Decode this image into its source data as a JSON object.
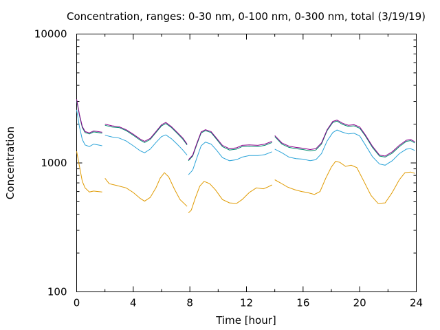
{
  "chart_data": {
    "type": "line",
    "title": "Concentration, ranges: 0-30 nm, 0-100 nm, 0-300 nm, total (3/19/19)",
    "xlabel": "Time [hour]",
    "ylabel": "Concentration",
    "xlim": [
      0,
      24
    ],
    "ylim": [
      100,
      10000
    ],
    "yscale": "log",
    "x_ticks": [
      "0",
      "4",
      "8",
      "12",
      "16",
      "20",
      "24"
    ],
    "y_ticks": [
      "100",
      "1000",
      "10000"
    ],
    "grid": false,
    "series": [
      {
        "color": "#e09a00",
        "segments": [
          [
            [
              0.0,
              1230
            ],
            [
              0.2,
              940
            ],
            [
              0.4,
              720
            ],
            [
              0.6,
              640
            ],
            [
              0.9,
              595
            ],
            [
              1.2,
              605
            ],
            [
              1.5,
              600
            ],
            [
              1.8,
              595
            ]
          ],
          [
            [
              2.0,
              760
            ],
            [
              2.3,
              690
            ],
            [
              2.8,
              670
            ],
            [
              3.5,
              640
            ],
            [
              4.0,
              590
            ],
            [
              4.5,
              530
            ],
            [
              4.8,
              505
            ],
            [
              5.2,
              540
            ],
            [
              5.6,
              640
            ],
            [
              5.9,
              760
            ],
            [
              6.2,
              840
            ],
            [
              6.5,
              780
            ],
            [
              6.9,
              630
            ],
            [
              7.3,
              520
            ],
            [
              7.8,
              460
            ]
          ],
          [
            [
              7.9,
              410
            ],
            [
              8.1,
              430
            ],
            [
              8.4,
              540
            ],
            [
              8.7,
              660
            ],
            [
              9.0,
              720
            ],
            [
              9.4,
              690
            ],
            [
              9.8,
              620
            ],
            [
              10.3,
              520
            ],
            [
              10.8,
              490
            ],
            [
              11.3,
              485
            ],
            [
              11.7,
              520
            ],
            [
              12.2,
              590
            ],
            [
              12.7,
              640
            ],
            [
              13.2,
              630
            ],
            [
              13.5,
              650
            ],
            [
              13.8,
              675
            ]
          ],
          [
            [
              14.0,
              740
            ],
            [
              14.4,
              700
            ],
            [
              14.9,
              650
            ],
            [
              15.4,
              620
            ],
            [
              15.9,
              600
            ],
            [
              16.3,
              590
            ],
            [
              16.8,
              570
            ],
            [
              17.2,
              600
            ],
            [
              17.6,
              760
            ],
            [
              18.0,
              930
            ],
            [
              18.3,
              1030
            ],
            [
              18.6,
              1010
            ],
            [
              19.0,
              940
            ],
            [
              19.4,
              960
            ],
            [
              19.8,
              920
            ],
            [
              20.3,
              720
            ],
            [
              20.8,
              560
            ],
            [
              21.3,
              485
            ],
            [
              21.8,
              490
            ],
            [
              22.3,
              590
            ],
            [
              22.8,
              740
            ],
            [
              23.2,
              840
            ],
            [
              23.6,
              850
            ],
            [
              23.9,
              830
            ]
          ]
        ]
      },
      {
        "color": "#2aa3d8",
        "segments": [
          [
            [
              0.0,
              2580
            ],
            [
              0.2,
              1900
            ],
            [
              0.4,
              1520
            ],
            [
              0.6,
              1380
            ],
            [
              0.9,
              1340
            ],
            [
              1.2,
              1400
            ],
            [
              1.5,
              1380
            ],
            [
              1.8,
              1360
            ]
          ],
          [
            [
              2.0,
              1640
            ],
            [
              2.5,
              1590
            ],
            [
              3.0,
              1560
            ],
            [
              3.5,
              1480
            ],
            [
              4.0,
              1360
            ],
            [
              4.5,
              1240
            ],
            [
              4.8,
              1200
            ],
            [
              5.2,
              1280
            ],
            [
              5.6,
              1440
            ],
            [
              6.0,
              1600
            ],
            [
              6.3,
              1650
            ],
            [
              6.7,
              1540
            ],
            [
              7.1,
              1400
            ],
            [
              7.5,
              1260
            ],
            [
              7.8,
              1150
            ]
          ],
          [
            [
              7.9,
              810
            ],
            [
              8.2,
              880
            ],
            [
              8.5,
              1100
            ],
            [
              8.8,
              1360
            ],
            [
              9.1,
              1450
            ],
            [
              9.5,
              1400
            ],
            [
              9.9,
              1250
            ],
            [
              10.3,
              1100
            ],
            [
              10.8,
              1040
            ],
            [
              11.3,
              1060
            ],
            [
              11.7,
              1110
            ],
            [
              12.2,
              1140
            ],
            [
              12.8,
              1140
            ],
            [
              13.3,
              1160
            ],
            [
              13.8,
              1220
            ]
          ],
          [
            [
              14.0,
              1280
            ],
            [
              14.5,
              1200
            ],
            [
              15.0,
              1110
            ],
            [
              15.5,
              1080
            ],
            [
              16.0,
              1070
            ],
            [
              16.5,
              1040
            ],
            [
              16.9,
              1060
            ],
            [
              17.3,
              1180
            ],
            [
              17.7,
              1480
            ],
            [
              18.1,
              1720
            ],
            [
              18.4,
              1800
            ],
            [
              18.8,
              1730
            ],
            [
              19.2,
              1680
            ],
            [
              19.6,
              1700
            ],
            [
              20.0,
              1620
            ],
            [
              20.4,
              1380
            ],
            [
              20.9,
              1120
            ],
            [
              21.4,
              980
            ],
            [
              21.8,
              960
            ],
            [
              22.3,
              1040
            ],
            [
              22.8,
              1180
            ],
            [
              23.3,
              1280
            ],
            [
              23.6,
              1290
            ],
            [
              23.9,
              1250
            ]
          ]
        ]
      },
      {
        "color": "#008b6e",
        "segments": [
          [
            [
              0.0,
              3050
            ],
            [
              0.2,
              2320
            ],
            [
              0.4,
              1880
            ],
            [
              0.6,
              1720
            ],
            [
              0.9,
              1680
            ],
            [
              1.2,
              1740
            ],
            [
              1.5,
              1720
            ],
            [
              1.8,
              1700
            ]
          ],
          [
            [
              2.0,
              1960
            ],
            [
              2.5,
              1900
            ],
            [
              3.0,
              1880
            ],
            [
              3.5,
              1780
            ],
            [
              4.0,
              1640
            ],
            [
              4.5,
              1500
            ],
            [
              4.8,
              1440
            ],
            [
              5.2,
              1520
            ],
            [
              5.6,
              1720
            ],
            [
              6.0,
              1940
            ],
            [
              6.3,
              2020
            ],
            [
              6.7,
              1880
            ],
            [
              7.1,
              1700
            ],
            [
              7.5,
              1530
            ],
            [
              7.8,
              1380
            ]
          ],
          [
            [
              7.9,
              1040
            ],
            [
              8.2,
              1130
            ],
            [
              8.5,
              1400
            ],
            [
              8.8,
              1710
            ],
            [
              9.1,
              1780
            ],
            [
              9.5,
              1720
            ],
            [
              9.9,
              1520
            ],
            [
              10.3,
              1340
            ],
            [
              10.8,
              1260
            ],
            [
              11.3,
              1280
            ],
            [
              11.7,
              1340
            ],
            [
              12.2,
              1350
            ],
            [
              12.8,
              1340
            ],
            [
              13.3,
              1370
            ],
            [
              13.8,
              1440
            ]
          ],
          [
            [
              14.0,
              1600
            ],
            [
              14.5,
              1400
            ],
            [
              15.0,
              1320
            ],
            [
              15.5,
              1290
            ],
            [
              16.0,
              1270
            ],
            [
              16.5,
              1240
            ],
            [
              16.9,
              1260
            ],
            [
              17.3,
              1400
            ],
            [
              17.7,
              1780
            ],
            [
              18.1,
              2060
            ],
            [
              18.4,
              2110
            ],
            [
              18.8,
              1990
            ],
            [
              19.2,
              1920
            ],
            [
              19.6,
              1940
            ],
            [
              20.0,
              1860
            ],
            [
              20.4,
              1620
            ],
            [
              20.9,
              1320
            ],
            [
              21.4,
              1130
            ],
            [
              21.8,
              1110
            ],
            [
              22.3,
              1190
            ],
            [
              22.8,
              1340
            ],
            [
              23.3,
              1470
            ],
            [
              23.6,
              1490
            ],
            [
              23.9,
              1430
            ]
          ]
        ]
      },
      {
        "color": "#8b008b",
        "segments": [
          [
            [
              0.0,
              3120
            ],
            [
              0.2,
              2370
            ],
            [
              0.4,
              1920
            ],
            [
              0.6,
              1750
            ],
            [
              0.9,
              1710
            ],
            [
              1.2,
              1770
            ],
            [
              1.5,
              1750
            ],
            [
              1.8,
              1730
            ]
          ],
          [
            [
              2.0,
              2000
            ],
            [
              2.5,
              1940
            ],
            [
              3.0,
              1910
            ],
            [
              3.5,
              1810
            ],
            [
              4.0,
              1670
            ],
            [
              4.5,
              1530
            ],
            [
              4.8,
              1470
            ],
            [
              5.2,
              1550
            ],
            [
              5.6,
              1750
            ],
            [
              6.0,
              1980
            ],
            [
              6.3,
              2060
            ],
            [
              6.7,
              1910
            ],
            [
              7.1,
              1730
            ],
            [
              7.5,
              1560
            ],
            [
              7.8,
              1400
            ]
          ],
          [
            [
              7.9,
              1060
            ],
            [
              8.2,
              1150
            ],
            [
              8.5,
              1430
            ],
            [
              8.8,
              1740
            ],
            [
              9.1,
              1810
            ],
            [
              9.5,
              1750
            ],
            [
              9.9,
              1550
            ],
            [
              10.3,
              1370
            ],
            [
              10.8,
              1290
            ],
            [
              11.3,
              1310
            ],
            [
              11.7,
              1370
            ],
            [
              12.2,
              1380
            ],
            [
              12.8,
              1370
            ],
            [
              13.3,
              1400
            ],
            [
              13.8,
              1470
            ]
          ],
          [
            [
              14.0,
              1630
            ],
            [
              14.5,
              1430
            ],
            [
              15.0,
              1350
            ],
            [
              15.5,
              1320
            ],
            [
              16.0,
              1300
            ],
            [
              16.5,
              1270
            ],
            [
              16.9,
              1290
            ],
            [
              17.3,
              1430
            ],
            [
              17.7,
              1810
            ],
            [
              18.1,
              2100
            ],
            [
              18.4,
              2150
            ],
            [
              18.8,
              2030
            ],
            [
              19.2,
              1960
            ],
            [
              19.6,
              1980
            ],
            [
              20.0,
              1900
            ],
            [
              20.4,
              1650
            ],
            [
              20.9,
              1350
            ],
            [
              21.4,
              1150
            ],
            [
              21.8,
              1130
            ],
            [
              22.3,
              1220
            ],
            [
              22.8,
              1370
            ],
            [
              23.3,
              1500
            ],
            [
              23.6,
              1520
            ],
            [
              23.9,
              1460
            ]
          ]
        ]
      }
    ]
  }
}
